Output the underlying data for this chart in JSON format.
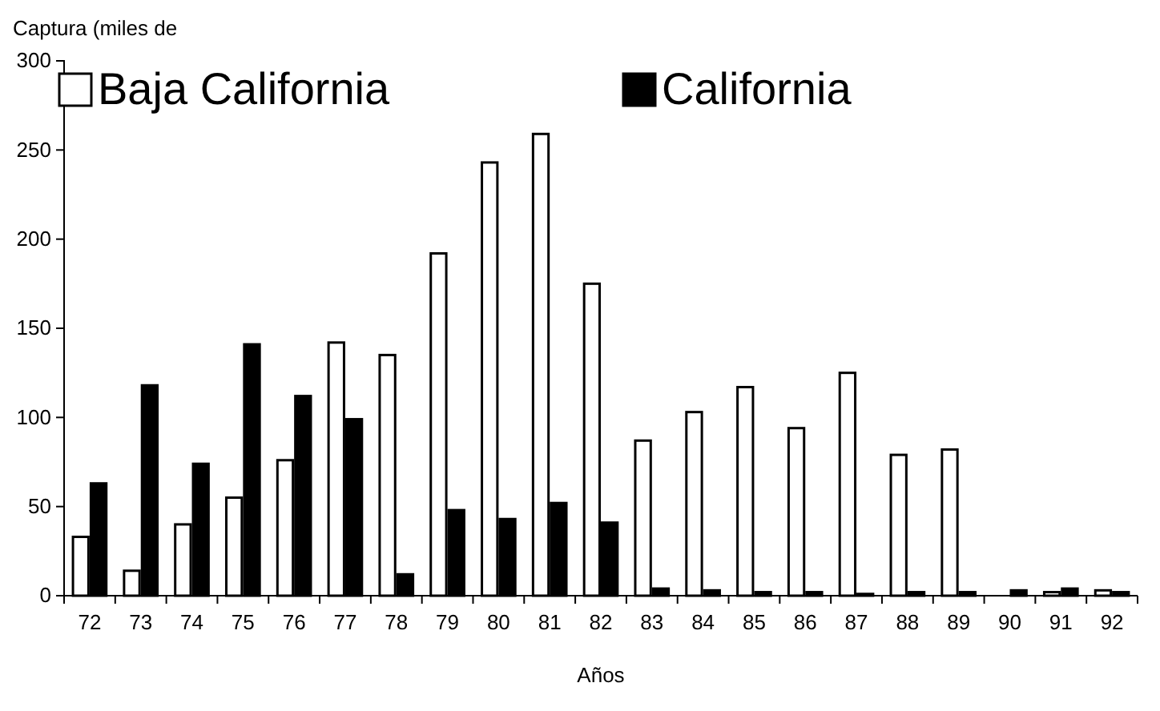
{
  "chart_data": {
    "type": "bar",
    "ylabel": "Captura (miles de",
    "xlabel": "Años",
    "categories": [
      "72",
      "73",
      "74",
      "75",
      "76",
      "77",
      "78",
      "79",
      "80",
      "81",
      "82",
      "83",
      "84",
      "85",
      "86",
      "87",
      "88",
      "89",
      "90",
      "91",
      "92"
    ],
    "series": [
      {
        "name": "Baja California",
        "color": "#ffffff",
        "values": [
          33,
          14,
          40,
          55,
          76,
          142,
          135,
          192,
          243,
          259,
          175,
          87,
          103,
          117,
          94,
          125,
          79,
          82,
          0,
          2,
          3
        ]
      },
      {
        "name": "California",
        "color": "#000000",
        "values": [
          63,
          118,
          74,
          141,
          112,
          99,
          12,
          48,
          43,
          52,
          41,
          4,
          3,
          2,
          2,
          1,
          2,
          2,
          3,
          4,
          2
        ]
      }
    ],
    "ylim": [
      0,
      300
    ],
    "yticks": [
      0,
      50,
      100,
      150,
      200,
      250,
      300
    ],
    "grid": false,
    "legend": "top"
  }
}
